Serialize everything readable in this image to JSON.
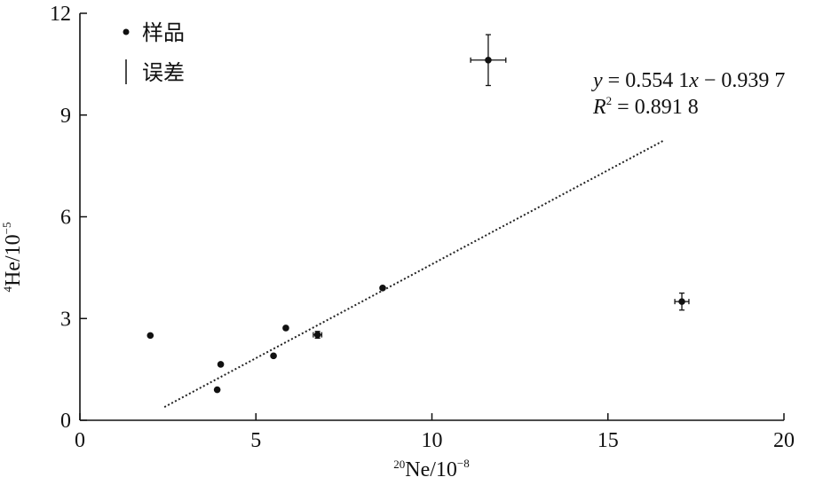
{
  "chart_data": {
    "type": "scatter",
    "xlabel": {
      "sup": "20",
      "base": "Ne/10",
      "exp": "−8"
    },
    "ylabel": {
      "sup": "4",
      "base": "He/10",
      "exp": "−5"
    },
    "xlim": [
      0,
      20
    ],
    "ylim": [
      0,
      12
    ],
    "xticks": [
      "0",
      "5",
      "10",
      "15",
      "20"
    ],
    "yticks": [
      "0",
      "3",
      "6",
      "9",
      "12"
    ],
    "legend": {
      "placement": "top-left",
      "items": [
        {
          "marker": "dot",
          "label": "样品"
        },
        {
          "marker": "errorbar",
          "label": "误差"
        }
      ]
    },
    "series": [
      {
        "points": [
          {
            "x": 2.0,
            "y": 2.5
          },
          {
            "x": 3.9,
            "y": 0.9
          },
          {
            "x": 4.0,
            "y": 1.65
          },
          {
            "x": 5.5,
            "y": 1.9
          },
          {
            "x": 5.85,
            "y": 2.72
          },
          {
            "x": 6.75,
            "y": 2.52,
            "xerr": 0.12,
            "yerr": 0.1
          },
          {
            "x": 8.6,
            "y": 3.9
          },
          {
            "x": 11.6,
            "y": 10.62,
            "xerr": 0.5,
            "yerr": 0.75
          },
          {
            "x": 17.1,
            "y": 3.5,
            "xerr": 0.2,
            "yerr": 0.25
          }
        ]
      }
    ],
    "fit_line": {
      "x_start": 2.4,
      "x_end": 16.6,
      "slope": 0.5541,
      "intercept": -0.9397
    },
    "equation": {
      "line1": {
        "y": "y",
        "eq": " = 0.554 1",
        "x": "x",
        "rest": " − 0.939 7"
      },
      "line2": {
        "r": "R",
        "exp": "2",
        "rest": " = 0.891 8"
      }
    },
    "colors": {
      "marker": "#111111",
      "axis": "#111111"
    }
  }
}
